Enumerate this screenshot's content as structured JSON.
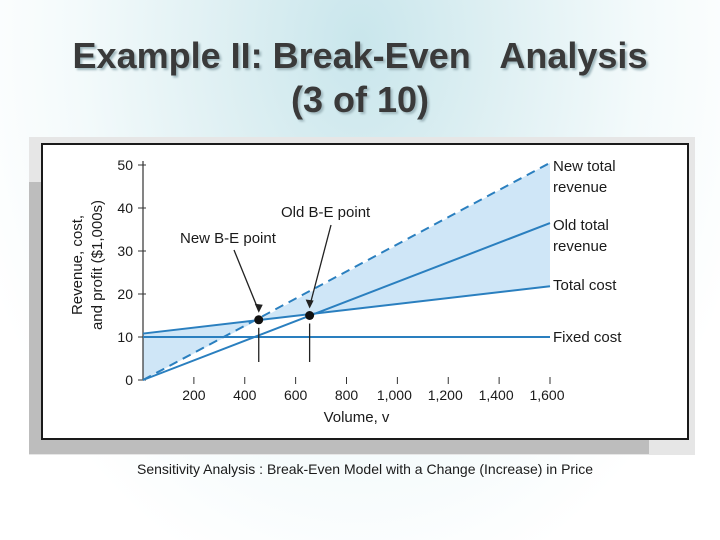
{
  "slide": {
    "title_line1": "Example II: Break-Even   Analysis",
    "title_line2": "(3 of 10)",
    "caption": "Sensitivity Analysis : Break-Even Model with a Change (Increase) in Price"
  },
  "chart_data": {
    "type": "line",
    "xlabel": "Volume, v",
    "ylabel_line1": "Revenue, cost,",
    "ylabel_line2": "and profit ($1,000s)",
    "xlim": [
      0,
      1600
    ],
    "ylim": [
      0,
      50
    ],
    "x_ticks": [
      200,
      400,
      600,
      800,
      1000,
      1200,
      1400,
      1600
    ],
    "x_tick_labels": [
      "200",
      "400",
      "600",
      "800",
      "1,000",
      "1,200",
      "1,400",
      "1,600"
    ],
    "y_ticks": [
      0,
      10,
      20,
      30,
      40,
      50
    ],
    "y_tick_labels": [
      "0",
      "10",
      "20",
      "30",
      "40",
      "50"
    ],
    "series": [
      {
        "name": "New total revenue",
        "label_line1": "New total",
        "label_line2": "revenue",
        "style": "dashed",
        "x": [
          0,
          1600
        ],
        "y": [
          0,
          50.5
        ]
      },
      {
        "name": "Old total revenue",
        "label_line1": "Old total",
        "label_line2": "revenue",
        "style": "solid",
        "x": [
          0,
          1600
        ],
        "y": [
          0,
          36.5
        ]
      },
      {
        "name": "Total cost",
        "label_line1": "Total cost",
        "label_line2": "",
        "style": "solid",
        "x": [
          0,
          1600
        ],
        "y": [
          10.8,
          21.8
        ]
      },
      {
        "name": "Fixed cost",
        "label_line1": "Fixed cost",
        "label_line2": "",
        "style": "solid",
        "x": [
          0,
          1600
        ],
        "y": [
          10,
          10
        ]
      }
    ],
    "points": [
      {
        "label": "New B-E point",
        "x": 455,
        "y": 14
      },
      {
        "label": "Old B-E point",
        "x": 655,
        "y": 15
      }
    ],
    "colors": {
      "line": "#2a7fbf",
      "fill": "#cfe6f7",
      "text": "#1a1a1a",
      "axis": "#333333"
    }
  }
}
